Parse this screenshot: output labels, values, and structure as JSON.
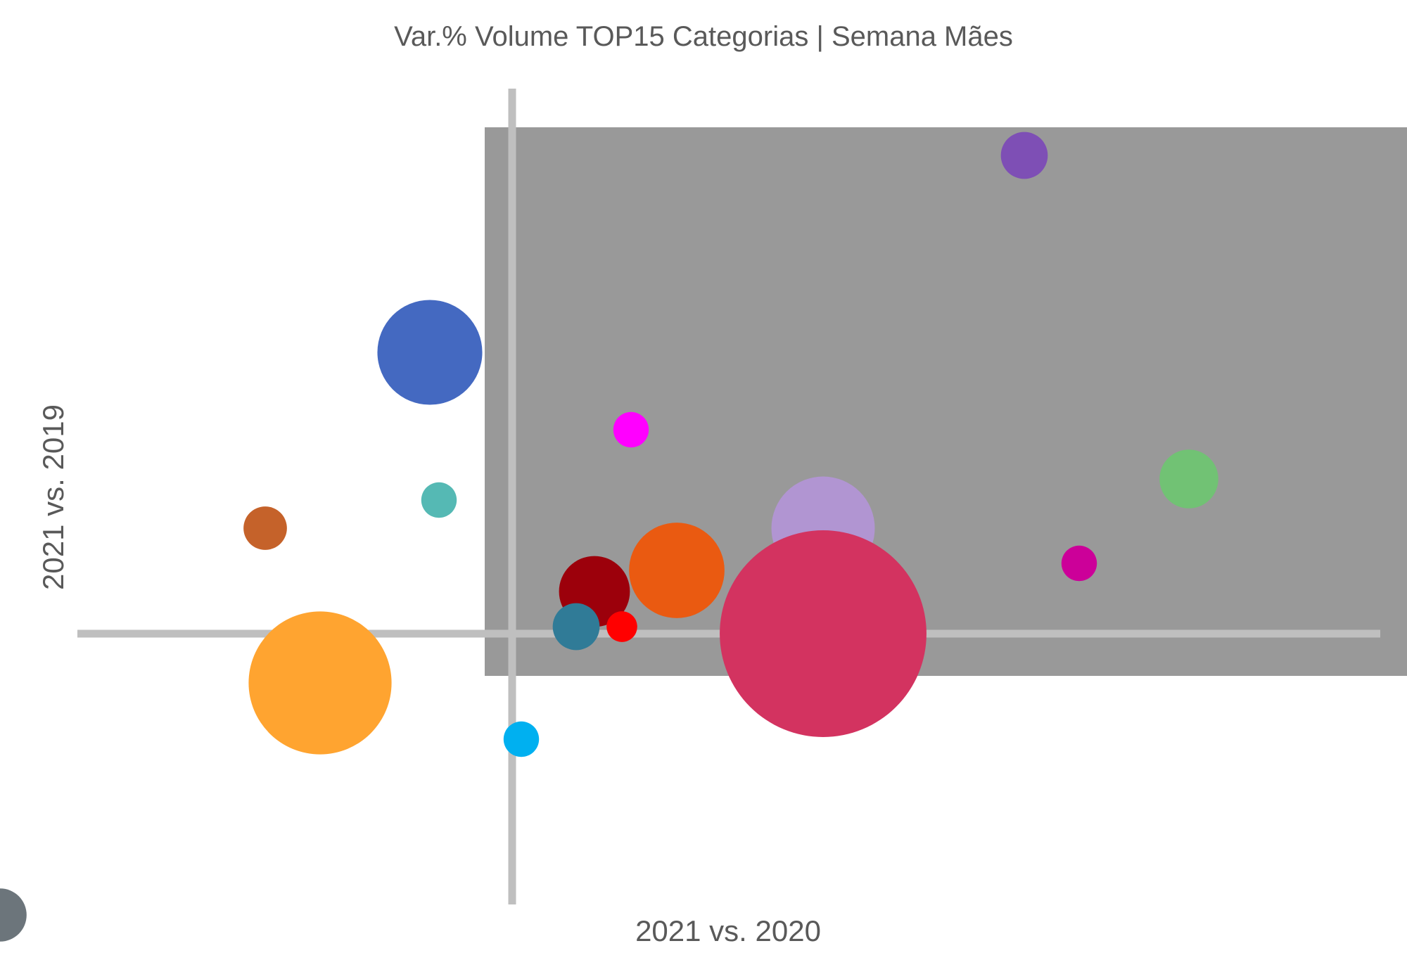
{
  "chart_data": {
    "type": "scatter",
    "variant": "bubble",
    "title": "Var.% Volume TOP15 Categorias | Semana Mães",
    "xlabel": "2021 vs. 2020",
    "ylabel": "2021 vs. 2019",
    "xlim": [
      -0.56,
      0.98
    ],
    "ylim": [
      -0.44,
      0.84
    ],
    "reference_lines": {
      "x": 0,
      "y": 0
    },
    "highlight_region": {
      "x": [
        -0.03,
        1.0
      ],
      "y": [
        -0.06,
        0.72
      ],
      "color": "#999999"
    },
    "axis_line_color": "#bfbfbf",
    "grid": false,
    "legend": "none",
    "points": [
      {
        "x": 0.56,
        "y": 0.68,
        "size": 7,
        "color": "#7e4fb5"
      },
      {
        "x": -0.09,
        "y": 0.4,
        "size": 35,
        "color": "#4469c1"
      },
      {
        "x": 0.13,
        "y": 0.29,
        "size": 4,
        "color": "#ff00ff"
      },
      {
        "x": -0.08,
        "y": 0.19,
        "size": 4,
        "color": "#55b9b4"
      },
      {
        "x": 0.74,
        "y": 0.22,
        "size": 11,
        "color": "#71c274"
      },
      {
        "x": -0.27,
        "y": 0.15,
        "size": 6,
        "color": "#c5622a"
      },
      {
        "x": 0.34,
        "y": 0.15,
        "size": 34,
        "color": "#b195d2"
      },
      {
        "x": 0.18,
        "y": 0.09,
        "size": 29,
        "color": "#ea5a11"
      },
      {
        "x": 0.62,
        "y": 0.1,
        "size": 4,
        "color": "#cc0099"
      },
      {
        "x": 0.09,
        "y": 0.06,
        "size": 16,
        "color": "#9c000b"
      },
      {
        "x": 0.34,
        "y": 0.0,
        "size": 136,
        "color": "#d33360"
      },
      {
        "x": 0.07,
        "y": 0.01,
        "size": 7,
        "color": "#307b97"
      },
      {
        "x": 0.12,
        "y": 0.01,
        "size": 3,
        "color": "#ff0000"
      },
      {
        "x": -0.21,
        "y": -0.07,
        "size": 65,
        "color": "#ffa430"
      },
      {
        "x": 0.01,
        "y": -0.15,
        "size": 4,
        "color": "#00b0f0"
      },
      {
        "x": -0.56,
        "y": -0.4,
        "size": 9,
        "color": "#6c757b"
      }
    ]
  }
}
